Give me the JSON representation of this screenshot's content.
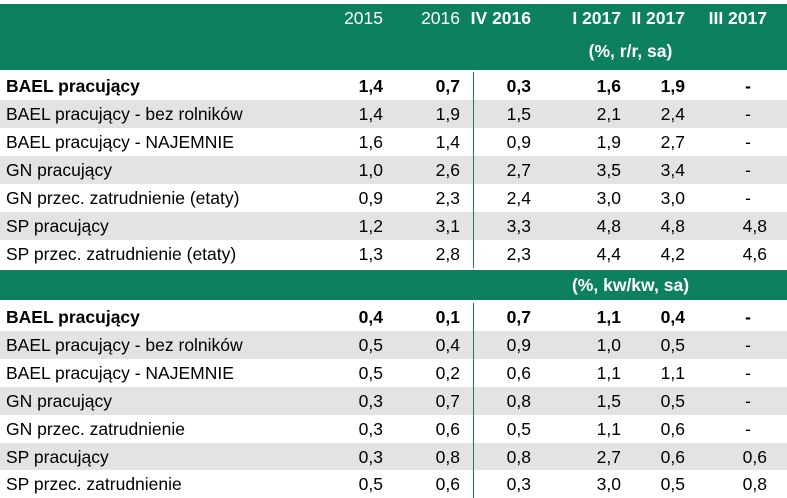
{
  "colors": {
    "header_green": "#0d8060",
    "stripe_grey": "#e3e3e3"
  },
  "header": {
    "columns": [
      "2015",
      "2016",
      "IV 2016",
      "I 2017",
      "II 2017",
      "III 2017"
    ],
    "unit_yoy": "(%, r/r, sa)",
    "unit_qoq": "(%, kw/kw, sa)"
  },
  "yoy_rows": [
    {
      "label": "BAEL pracujący",
      "bold": true,
      "values": [
        "1,4",
        "0,7",
        "0,3",
        "1,6",
        "1,9",
        "-"
      ]
    },
    {
      "label": "BAEL pracujący - bez rolników",
      "values": [
        "1,4",
        "1,9",
        "1,5",
        "2,1",
        "2,4",
        "-"
      ]
    },
    {
      "label": "BAEL pracujący - NAJEMNIE",
      "values": [
        "1,6",
        "1,4",
        "0,9",
        "1,9",
        "2,7",
        "-"
      ]
    },
    {
      "label": "GN pracujący",
      "values": [
        "1,0",
        "2,6",
        "2,7",
        "3,5",
        "3,4",
        "-"
      ]
    },
    {
      "label": "GN przec. zatrudnienie (etaty)",
      "values": [
        "0,9",
        "2,3",
        "2,4",
        "3,0",
        "3,0",
        "-"
      ]
    },
    {
      "label": "SP pracujący",
      "values": [
        "1,2",
        "3,1",
        "3,3",
        "4,8",
        "4,8",
        "4,8"
      ]
    },
    {
      "label": "SP przec. zatrudnienie (etaty)",
      "values": [
        "1,3",
        "2,8",
        "2,3",
        "4,4",
        "4,2",
        "4,6"
      ]
    }
  ],
  "qoq_rows": [
    {
      "label": "BAEL pracujący",
      "bold": true,
      "values": [
        "0,4",
        "0,1",
        "0,7",
        "1,1",
        "0,4",
        "-"
      ]
    },
    {
      "label": "BAEL pracujący - bez rolników",
      "values": [
        "0,5",
        "0,4",
        "0,9",
        "1,0",
        "0,5",
        "-"
      ]
    },
    {
      "label": "BAEL pracujący - NAJEMNIE",
      "values": [
        "0,5",
        "0,2",
        "0,6",
        "1,1",
        "1,1",
        "-"
      ]
    },
    {
      "label": "GN pracujący",
      "values": [
        "0,3",
        "0,7",
        "0,8",
        "1,5",
        "0,5",
        "-"
      ]
    },
    {
      "label": "GN przec. zatrudnienie",
      "values": [
        "0,3",
        "0,6",
        "0,5",
        "1,1",
        "0,6",
        "-"
      ]
    },
    {
      "label": "SP pracujący",
      "values": [
        "0,3",
        "0,8",
        "0,8",
        "2,7",
        "0,6",
        "0,6"
      ]
    },
    {
      "label": "SP przec. zatrudnienie",
      "values": [
        "0,5",
        "0,6",
        "0,3",
        "3,0",
        "0,5",
        "0,8"
      ]
    }
  ]
}
